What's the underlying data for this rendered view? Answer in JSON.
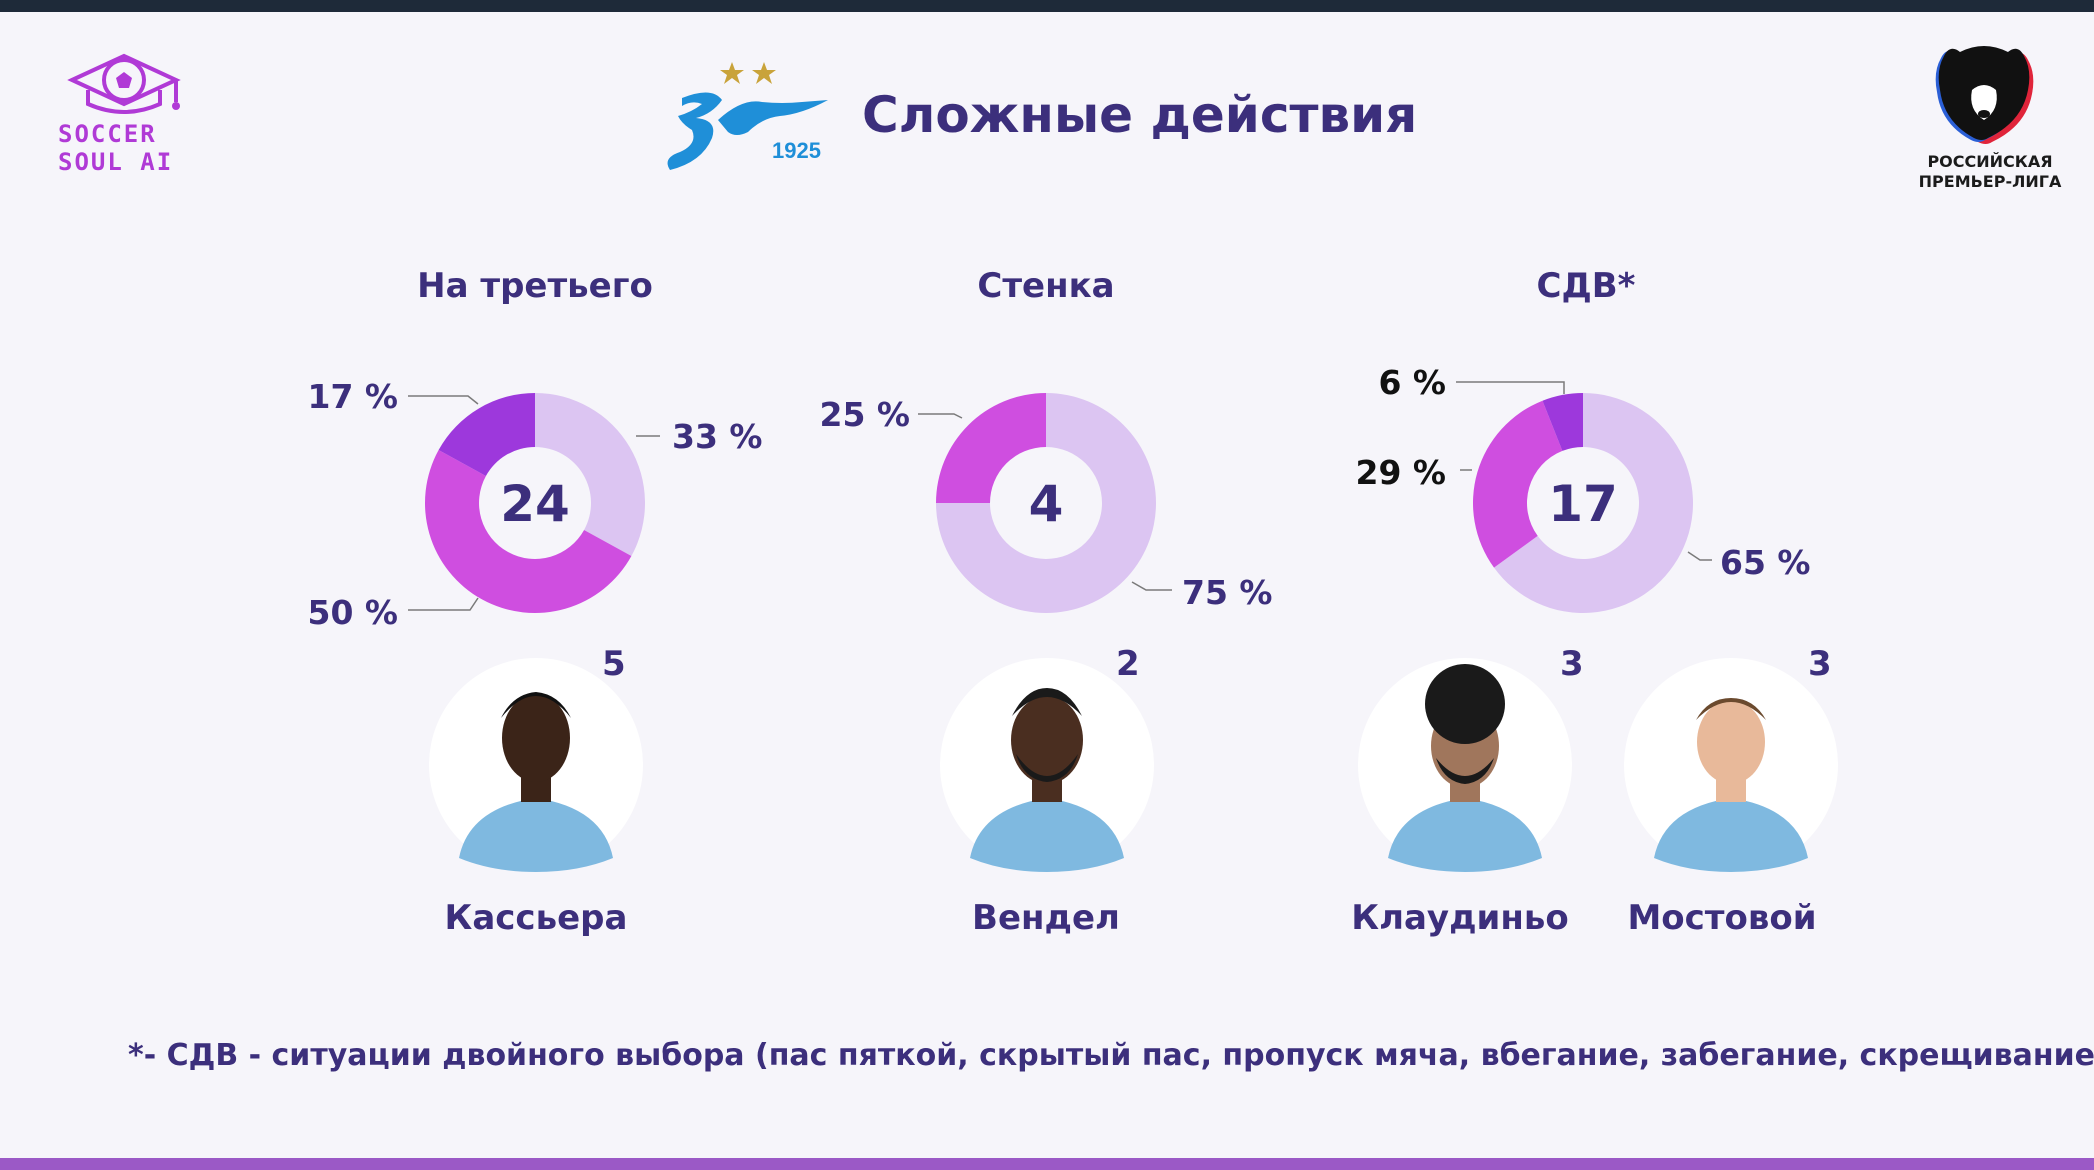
{
  "header": {
    "title": "Сложные действия",
    "zenit_year": "1925",
    "soccersoul_line1": "SOCCER",
    "soccersoul_line2": "SOUL AI",
    "rpl_line1": "РОССИЙСКАЯ",
    "rpl_line2": "ПРЕМЬЕР-ЛИГА"
  },
  "colors": {
    "title": "#3c2f7c",
    "slice_light": "#dcc5f2",
    "slice_magenta": "#cf4ee0",
    "slice_purple": "#9d38dc",
    "leader_line": "#7a7a7a",
    "brand_purple": "#b03ad6"
  },
  "chart_data": [
    {
      "type": "pie",
      "title": "На третьего",
      "total": 24,
      "slices": [
        {
          "value": 33,
          "label": "33 %",
          "color": "#dcc5f2"
        },
        {
          "value": 50,
          "label": "50 %",
          "color": "#cf4ee0"
        },
        {
          "value": 17,
          "label": "17 %",
          "color": "#9d38dc"
        }
      ]
    },
    {
      "type": "pie",
      "title": "Стенка",
      "total": 4,
      "slices": [
        {
          "value": 75,
          "label": "75 %",
          "color": "#dcc5f2"
        },
        {
          "value": 25,
          "label": "25 %",
          "color": "#cf4ee0"
        }
      ]
    },
    {
      "type": "pie",
      "title": "СДВ*",
      "total": 17,
      "slices": [
        {
          "value": 65,
          "label": "65 %",
          "color": "#dcc5f2"
        },
        {
          "value": 29,
          "label": "29 %",
          "color": "#cf4ee0"
        },
        {
          "value": 6,
          "label": "6 %",
          "color": "#9d38dc"
        }
      ]
    }
  ],
  "players": [
    {
      "name": "Кассьера",
      "count": "5"
    },
    {
      "name": "Вендел",
      "count": "2"
    },
    {
      "name": "Клаудиньо",
      "count": "3"
    },
    {
      "name": "Мостовой",
      "count": "3"
    }
  ],
  "footnote": "*- СДВ - ситуации двойного выбора (пас пяткой, скрытый пас, пропуск мяча, вбегание, забегание, скрещивание)"
}
